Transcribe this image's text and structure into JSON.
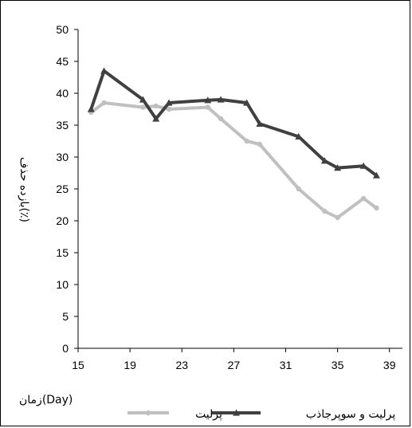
{
  "chart_data": {
    "type": "line",
    "title": "",
    "xlabel": "زمان(Day)",
    "ylabel": "بازده حذف(٪)",
    "xlim": [
      15,
      40
    ],
    "ylim": [
      0,
      50
    ],
    "xticks": [
      15,
      19,
      23,
      27,
      31,
      35,
      39
    ],
    "yticks": [
      0,
      5,
      10,
      15,
      20,
      25,
      30,
      35,
      40,
      45,
      50
    ],
    "grid": false,
    "legend": "bottom",
    "series": [
      {
        "name": "پرلیت",
        "color": "#c0c0c0",
        "marker": "circle",
        "points": [
          [
            16,
            37
          ],
          [
            17,
            38.5
          ],
          [
            20,
            37.8
          ],
          [
            21,
            38
          ],
          [
            22,
            37.5
          ],
          [
            25,
            37.8
          ],
          [
            26,
            36
          ],
          [
            28,
            32.5
          ],
          [
            29,
            32
          ],
          [
            32,
            25
          ],
          [
            34,
            21.5
          ],
          [
            35,
            20.5
          ],
          [
            37,
            23.5
          ],
          [
            38,
            22
          ]
        ]
      },
      {
        "name": "پرلیت و سوپرجاذب",
        "color": "#404040",
        "marker": "triangle",
        "points": [
          [
            16,
            37.5
          ],
          [
            17,
            43.5
          ],
          [
            20,
            39
          ],
          [
            21,
            36
          ],
          [
            22,
            38.5
          ],
          [
            25,
            38.9
          ],
          [
            26,
            39
          ],
          [
            28,
            38.5
          ],
          [
            29,
            35.2
          ],
          [
            32,
            33.2
          ],
          [
            34,
            29.4
          ],
          [
            35,
            28.3
          ],
          [
            37,
            28.6
          ],
          [
            38,
            27.1
          ]
        ]
      }
    ]
  }
}
